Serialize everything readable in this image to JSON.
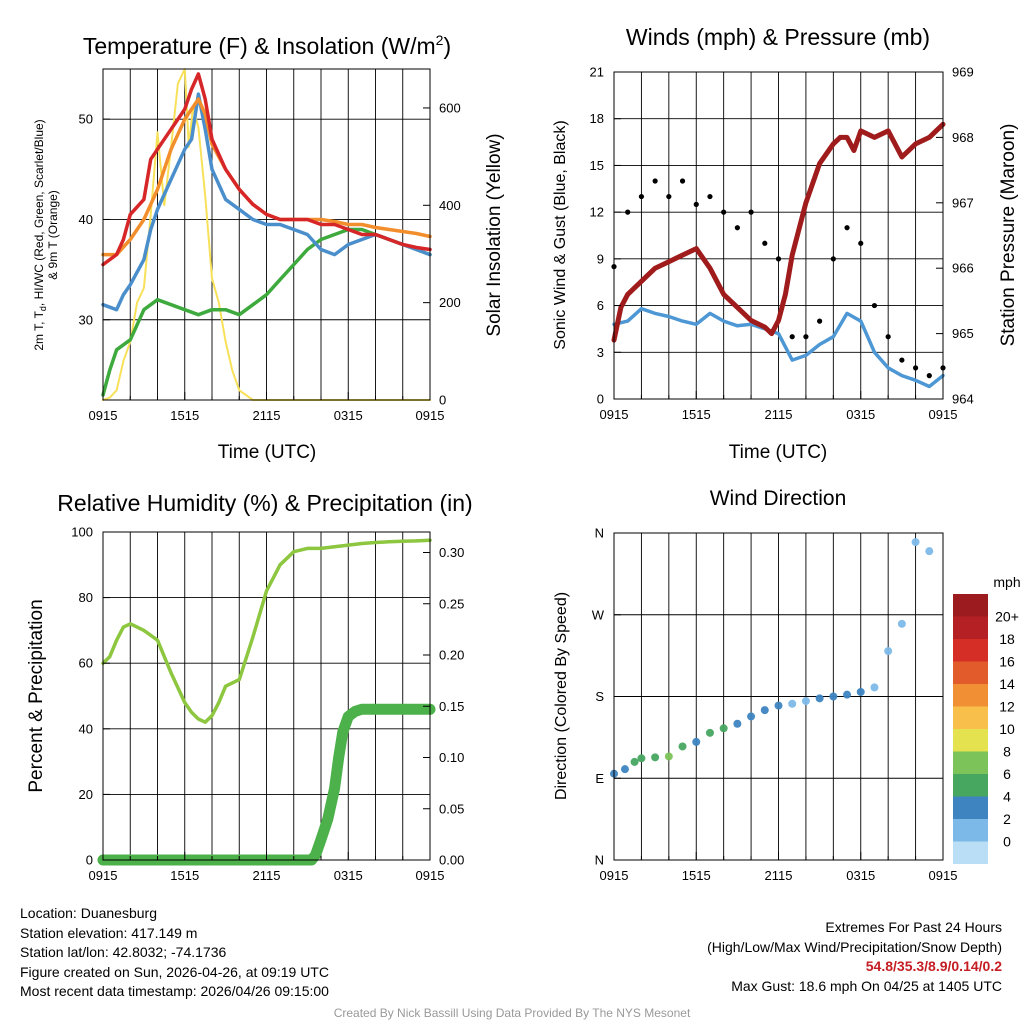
{
  "colors": {
    "temp_red": "#d62628",
    "td_green": "#3eaa3e",
    "wc_blue": "#4a8fcb",
    "t9m_orange": "#f28e2b",
    "solar_yellow": "#f8e15a",
    "pressure_maroon": "#a01c1c",
    "sonic_blue": "#4d97d4",
    "gust_black": "#000000",
    "rh_lightgreen": "#8dc63f",
    "precip_green": "#4cb14a"
  },
  "chart_data": [
    {
      "id": "temp",
      "type": "line",
      "title": "Temperature (F) & Insolation (W/m",
      "title_sup": "2",
      "title_end": ")",
      "xlabel": "Time (UTC)",
      "ylabel_left_1": "2m T, T",
      "ylabel_left_sub": "d",
      "ylabel_left_2": ", HI/WC (Red, Green, Scarlet/Blue)",
      "ylabel_left_3": "& 9m T (Orange)",
      "ylabel_right": "Solar Insolation (Yellow)",
      "x_tick_labels": [
        "0915",
        "1515",
        "2115",
        "0315",
        "0915"
      ],
      "x_range_hours": [
        0,
        24
      ],
      "ylim_left": [
        22,
        55
      ],
      "yticks_left": [
        "30",
        "40",
        "50"
      ],
      "ylim_right": [
        0,
        680
      ],
      "yticks_right": [
        "0",
        "200",
        "400",
        "600"
      ],
      "series": [
        {
          "name": "2m T",
          "axis": "left",
          "color_key": "temp_red",
          "x": [
            0,
            1,
            1.5,
            2,
            3,
            3.5,
            4,
            5,
            6,
            6.5,
            7,
            7.5,
            8,
            9,
            10,
            11,
            12,
            13,
            14,
            15,
            16,
            17,
            18,
            19,
            20,
            21,
            22,
            23,
            24
          ],
          "y": [
            35.5,
            36.5,
            38,
            40.5,
            42,
            46,
            47,
            49,
            51,
            53,
            54.5,
            52,
            48,
            45,
            43,
            41.5,
            40.5,
            40,
            40,
            40,
            39.5,
            39.5,
            39,
            38.5,
            38.5,
            38,
            37.5,
            37.2,
            37
          ]
        },
        {
          "name": "Td",
          "axis": "left",
          "color_key": "td_green",
          "x": [
            0,
            0.5,
            1,
            1.5,
            2,
            2.5,
            3,
            3.5,
            4,
            5,
            6,
            7,
            8,
            9,
            10,
            11,
            12,
            13,
            14,
            15,
            16,
            17,
            18,
            19,
            20,
            21,
            22,
            23,
            24
          ],
          "y": [
            22.5,
            25,
            27,
            27.5,
            28,
            29.5,
            31,
            31.5,
            32,
            31.5,
            31,
            30.5,
            31,
            31,
            30.5,
            31.5,
            32.5,
            34,
            35.5,
            37,
            38,
            38.5,
            39,
            39,
            38.5,
            38,
            37.5,
            37,
            36.5
          ]
        },
        {
          "name": "HI/WC",
          "axis": "left",
          "color_key": "wc_blue",
          "x": [
            0,
            1,
            1.5,
            2,
            3,
            3.5,
            4,
            5,
            6,
            6.5,
            7,
            7.5,
            8,
            9,
            10,
            11,
            12,
            13,
            14,
            15,
            16,
            17,
            18,
            19,
            20,
            21,
            22,
            23,
            24
          ],
          "y": [
            31.5,
            31,
            32.5,
            33.5,
            36,
            39,
            41,
            44,
            47,
            48,
            52.5,
            49,
            45,
            42,
            41,
            40,
            39.5,
            39.5,
            39,
            38.5,
            37,
            36.5,
            37.5,
            38,
            38.5,
            38,
            37.5,
            37,
            36.5
          ]
        },
        {
          "name": "9m T",
          "axis": "left",
          "color_key": "t9m_orange",
          "x": [
            0,
            1,
            2,
            3,
            4,
            5,
            6,
            6.5,
            7,
            7.5,
            8,
            9,
            10,
            11,
            12,
            13,
            14,
            15,
            16,
            17,
            18,
            19,
            20,
            21,
            22,
            23,
            24
          ],
          "y": [
            36.5,
            36.5,
            38,
            40,
            43,
            47,
            50,
            51,
            52,
            50.5,
            47.5,
            45,
            43,
            41.5,
            40.5,
            40,
            40,
            40,
            40,
            39.8,
            39.5,
            39.5,
            39.2,
            39,
            38.8,
            38.6,
            38.3
          ]
        },
        {
          "name": "Solar Insolation",
          "axis": "right",
          "color_key": "solar_yellow",
          "x": [
            0,
            0.5,
            1,
            1.5,
            2,
            2.5,
            3,
            3.5,
            4,
            4.5,
            5,
            5.5,
            6,
            6.3,
            6.6,
            7,
            7.5,
            8,
            8.5,
            9,
            9.5,
            10,
            11,
            12,
            13,
            14,
            15,
            16,
            17,
            18,
            19,
            20,
            21,
            22,
            23,
            24
          ],
          "y": [
            0,
            5,
            20,
            80,
            120,
            200,
            230,
            380,
            550,
            400,
            520,
            650,
            680,
            520,
            600,
            560,
            420,
            250,
            200,
            120,
            60,
            20,
            0,
            0,
            0,
            0,
            0,
            0,
            0,
            0,
            0,
            0,
            0,
            0,
            0,
            0
          ]
        }
      ]
    },
    {
      "id": "winds",
      "type": "line",
      "title": "Winds (mph) & Pressure (mb)",
      "xlabel": "Time (UTC)",
      "ylabel_left": "Sonic Wind & Gust (Blue, Black)",
      "ylabel_right": "Station Pressure (Maroon)",
      "x_tick_labels": [
        "0915",
        "1515",
        "2115",
        "0315",
        "0915"
      ],
      "x_range_hours": [
        0,
        24
      ],
      "ylim_left": [
        0,
        21
      ],
      "yticks_left": [
        "0",
        "3",
        "6",
        "9",
        "12",
        "15",
        "18",
        "21"
      ],
      "ylim_right": [
        964,
        969
      ],
      "yticks_right": [
        "964",
        "965",
        "966",
        "967",
        "968",
        "969"
      ],
      "series": [
        {
          "name": "Station Pressure",
          "axis": "right",
          "color_key": "pressure_maroon",
          "x": [
            0,
            0.5,
            1,
            2,
            3,
            4,
            5,
            6,
            7,
            8,
            9,
            10,
            11,
            11.5,
            12,
            12.5,
            13,
            14,
            15,
            16,
            16.5,
            17,
            17.5,
            18,
            19,
            20,
            21,
            22,
            23,
            24
          ],
          "y": [
            964.9,
            965.4,
            965.6,
            965.8,
            966.0,
            966.1,
            966.2,
            966.3,
            966.0,
            965.6,
            965.4,
            965.2,
            965.1,
            965.0,
            965.2,
            965.6,
            966.2,
            967.0,
            967.6,
            967.9,
            968.0,
            968.0,
            967.8,
            968.1,
            968.0,
            968.1,
            967.7,
            967.9,
            968.0,
            968.2
          ]
        },
        {
          "name": "Sonic Wind",
          "axis": "left",
          "color_key": "sonic_blue",
          "x": [
            0,
            1,
            2,
            3,
            4,
            5,
            6,
            7,
            8,
            9,
            10,
            11,
            12,
            13,
            14,
            15,
            16,
            17,
            18,
            19,
            20,
            21,
            22,
            23,
            24
          ],
          "y": [
            4.8,
            5.0,
            5.8,
            5.5,
            5.3,
            5.0,
            4.8,
            5.5,
            5.0,
            4.7,
            4.8,
            4.5,
            4.2,
            2.5,
            2.8,
            3.5,
            4.0,
            5.5,
            5.0,
            3.0,
            2.0,
            1.5,
            1.2,
            0.8,
            1.5
          ]
        },
        {
          "name": "Gust",
          "axis": "left",
          "color_key": "gust_black",
          "mode": "points",
          "x": [
            0,
            1,
            2,
            3,
            4,
            5,
            6,
            7,
            8,
            9,
            10,
            11,
            12,
            13,
            14,
            15,
            16,
            17,
            18,
            19,
            20,
            21,
            22,
            23,
            24
          ],
          "y": [
            8.5,
            12,
            13,
            14,
            13,
            14,
            12.5,
            13,
            12,
            11,
            12,
            10,
            9,
            4,
            4,
            5,
            9,
            11,
            10,
            6,
            4,
            2.5,
            2,
            1.5,
            2
          ]
        }
      ]
    },
    {
      "id": "rh",
      "type": "line",
      "title": "Relative Humidity (%) & Precipitation (in)",
      "xlabel": "",
      "ylabel_left": "Percent & Precipitation",
      "x_tick_labels": [
        "0915",
        "1515",
        "2115",
        "0315",
        "0915"
      ],
      "x_range_hours": [
        0,
        24
      ],
      "ylim_left": [
        0,
        100
      ],
      "yticks_left": [
        "0",
        "20",
        "40",
        "60",
        "80",
        "100"
      ],
      "ylim_right": [
        0,
        0.32
      ],
      "yticks_right": [
        "0.00",
        "0.05",
        "0.10",
        "0.15",
        "0.20",
        "0.25",
        "0.30"
      ],
      "series": [
        {
          "name": "Relative Humidity",
          "axis": "left",
          "color_key": "rh_lightgreen",
          "x": [
            0,
            0.5,
            1,
            1.5,
            2,
            2.5,
            3,
            4,
            5,
            6,
            6.5,
            7,
            7.5,
            8,
            8.5,
            9,
            10,
            11,
            12,
            13,
            14,
            15,
            16,
            17,
            18,
            19,
            20,
            21,
            22,
            23,
            24
          ],
          "y": [
            60,
            62,
            67,
            71,
            72,
            71,
            70,
            67,
            57,
            48,
            45,
            43,
            42,
            44,
            48,
            53,
            55,
            68,
            82,
            90,
            94,
            95,
            95,
            95.5,
            96,
            96.5,
            96.8,
            97,
            97.2,
            97.3,
            97.5
          ]
        },
        {
          "name": "Precipitation",
          "axis": "right",
          "color_key": "precip_green",
          "x": [
            0,
            15.3,
            15.6,
            16,
            16.5,
            17,
            17.3,
            17.6,
            18,
            18.5,
            19,
            24
          ],
          "y": [
            0,
            0,
            0.005,
            0.02,
            0.04,
            0.07,
            0.1,
            0.125,
            0.14,
            0.145,
            0.147,
            0.147
          ]
        }
      ]
    },
    {
      "id": "wdir",
      "type": "scatter",
      "title": "Wind Direction",
      "xlabel": "",
      "ylabel_left": "Direction (Colored By Speed)",
      "x_tick_labels": [
        "0915",
        "1515",
        "2115",
        "0315",
        "0915"
      ],
      "x_range_hours": [
        0,
        24
      ],
      "ylim_left": [
        0,
        360
      ],
      "yticks_left": [
        "N",
        "E",
        "S",
        "W",
        "N"
      ],
      "colorbar_title": "mph",
      "colorbar_labels": [
        "20+",
        "18",
        "16",
        "14",
        "12",
        "10",
        "8",
        "6",
        "4",
        "2",
        "0"
      ],
      "colorbar_colors": [
        "#9b1b1e",
        "#b52025",
        "#d42e27",
        "#e25c2b",
        "#f18f34",
        "#f8c04b",
        "#e5e24f",
        "#7cc35a",
        "#47a761",
        "#3d84c1",
        "#7db9e8",
        "#b9def5"
      ],
      "series": [
        {
          "name": "Direction",
          "speed_mph": [
            3,
            3,
            5,
            6,
            6,
            7,
            6,
            4,
            5,
            6,
            4,
            3,
            4,
            3,
            2,
            2,
            3,
            4,
            3,
            3,
            1,
            1,
            1,
            1,
            1
          ],
          "x": [
            0,
            0.8,
            1.5,
            2,
            3,
            4,
            5,
            6,
            7,
            8,
            9,
            10,
            11,
            12,
            13,
            14,
            15,
            16,
            17,
            18,
            19,
            20,
            21,
            22,
            23
          ],
          "y": [
            95,
            100,
            108,
            112,
            113,
            114,
            125,
            130,
            140,
            145,
            150,
            158,
            165,
            170,
            172,
            175,
            178,
            180,
            182,
            185,
            190,
            230,
            260,
            350,
            340
          ]
        }
      ]
    }
  ],
  "info": {
    "location": "Location: Duanesburg",
    "elevation": "Station elevation: 417.149 m",
    "latlon": "Station lat/lon: 42.8032; -74.1736",
    "created": "Figure created on Sun, 2026-04-26, at 09:19 UTC",
    "recent": "Most recent data timestamp: 2026/04/26 09:15:00"
  },
  "extremes": {
    "title": "Extremes For Past 24 Hours",
    "subtitle": "(High/Low/Max Wind/Precipitation/Snow Depth)",
    "values": "54.8/35.3/8.9/0.14/0.2",
    "max_gust": "Max Gust: 18.6 mph On 04/25 at 1405 UTC"
  },
  "credit": "Created By Nick Bassill Using Data Provided By The NYS Mesonet"
}
